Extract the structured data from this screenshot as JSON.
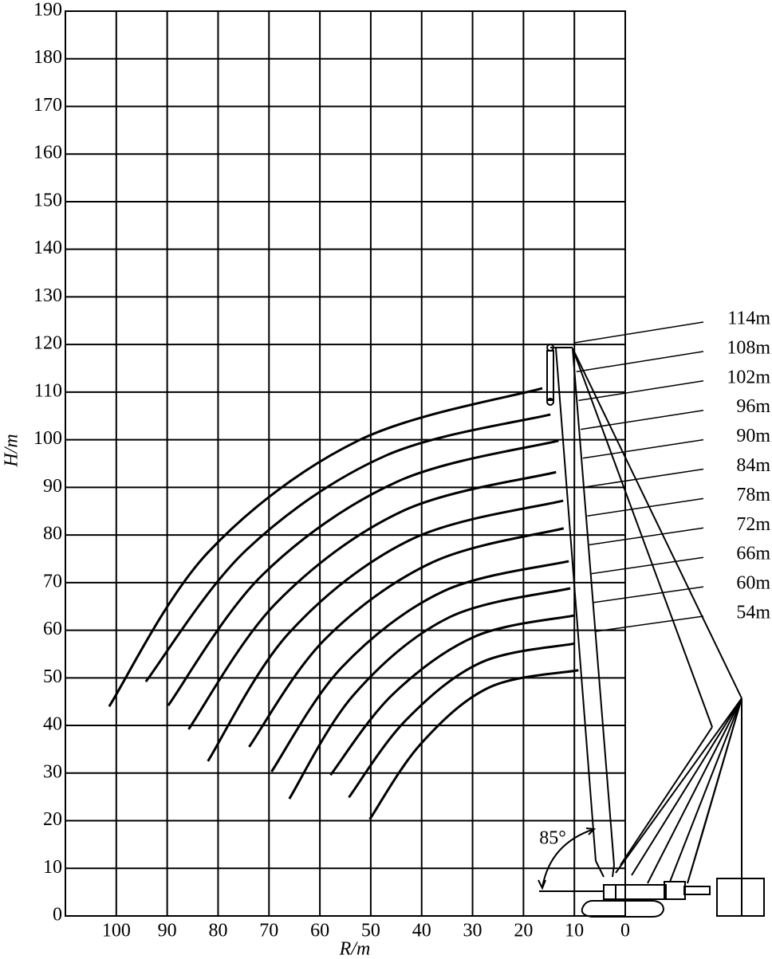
{
  "chart_data": {
    "type": "line",
    "x_label": "R/m",
    "y_label": "H/m",
    "annotations": [
      "85°"
    ],
    "color": "#000000",
    "xlim": [
      110,
      0
    ],
    "xticks": [
      100,
      90,
      80,
      70,
      60,
      50,
      40,
      30,
      20,
      10,
      0
    ],
    "ylim": [
      0,
      190
    ],
    "yticks": [
      0,
      10,
      20,
      30,
      40,
      50,
      60,
      70,
      80,
      90,
      100,
      110,
      120,
      130,
      140,
      150,
      160,
      170,
      180,
      190
    ],
    "grid": true,
    "series": [
      {
        "name": "114m",
        "x": [
          101.4,
          82.1,
          52.5,
          16.3
        ],
        "values": [
          44,
          76.2,
          99.8,
          110.8
        ]
      },
      {
        "name": "108m",
        "x": [
          94.2,
          74.5,
          47.2,
          14.7
        ],
        "values": [
          49.2,
          76.8,
          96.6,
          105.3
        ]
      },
      {
        "name": "102m",
        "x": [
          89.8,
          71.3,
          44.8,
          13.1
        ],
        "values": [
          44.2,
          71.6,
          91.2,
          99.8
        ]
      },
      {
        "name": "96m",
        "x": [
          85.8,
          68.6,
          43.8,
          13.6
        ],
        "values": [
          39.2,
          65.7,
          85.0,
          93.2
        ]
      },
      {
        "name": "90m",
        "x": [
          82,
          66.0,
          42.0,
          12.2
        ],
        "values": [
          32.5,
          59.5,
          79.1,
          87.2
        ]
      },
      {
        "name": "84m",
        "x": [
          73.9,
          59.1,
          37.8,
          12.1
        ],
        "values": [
          35.5,
          58.0,
          74.3,
          81.4
        ]
      },
      {
        "name": "78m",
        "x": [
          69.5,
          55.7,
          35.7,
          11.1
        ],
        "values": [
          30.3,
          52.2,
          68.2,
          74.5
        ]
      },
      {
        "name": "72m",
        "x": [
          66,
          53.3,
          34.6,
          10.8
        ],
        "values": [
          24.6,
          46.5,
          62.7,
          68.8
        ]
      },
      {
        "name": "66m",
        "x": [
          57.9,
          45.8,
          29.5,
          10
        ],
        "values": [
          29.6,
          46.4,
          58.7,
          63.1
        ]
      },
      {
        "name": "60m",
        "x": [
          54.3,
          43.2,
          28.4,
          10
        ],
        "values": [
          24.9,
          41.0,
          53.2,
          57.2
        ]
      },
      {
        "name": "54m",
        "x": [
          50.2,
          40.2,
          26.7,
          9.2
        ],
        "values": [
          20.3,
          36.1,
          48.0,
          51.6
        ]
      }
    ]
  }
}
